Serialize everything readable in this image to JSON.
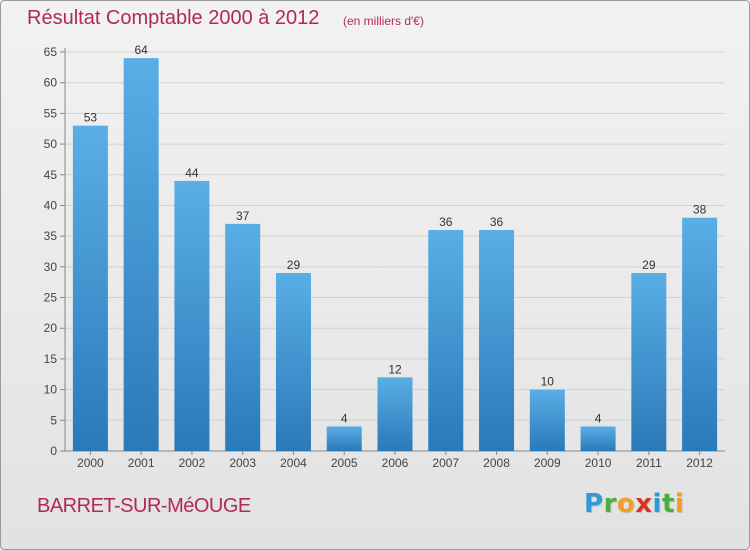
{
  "header": {
    "title": "Résultat Comptable 2000 à 2012",
    "units": "(en milliers d'€)"
  },
  "footer": {
    "commune": "BARRET-SUR-MéOUGE",
    "logo_letters": [
      {
        "char": "P",
        "color": "#2e9bd6"
      },
      {
        "char": "r",
        "color": "#4cae3f"
      },
      {
        "char": "o",
        "color": "#f0a020"
      },
      {
        "char": "x",
        "color": "#d9341f"
      },
      {
        "char": "i",
        "color": "#2e9bd6"
      },
      {
        "char": "t",
        "color": "#4cae3f"
      },
      {
        "char": "i",
        "color": "#f0a020"
      }
    ]
  },
  "chart_data": {
    "type": "bar",
    "title": "Résultat Comptable 2000 à 2012",
    "ylabel": "",
    "xlabel": "",
    "categories": [
      "2000",
      "2001",
      "2002",
      "2003",
      "2004",
      "2005",
      "2006",
      "2007",
      "2008",
      "2009",
      "2010",
      "2011",
      "2012"
    ],
    "values": [
      53,
      64,
      44,
      37,
      29,
      4,
      12,
      36,
      36,
      10,
      4,
      29,
      38
    ],
    "ylim": [
      0,
      65
    ],
    "yticks": [
      0,
      5,
      10,
      15,
      20,
      25,
      30,
      35,
      40,
      45,
      50,
      55,
      60,
      65
    ],
    "grid": true,
    "bar_color_top": "#5aaee6",
    "bar_color_bottom": "#2a79b8"
  }
}
